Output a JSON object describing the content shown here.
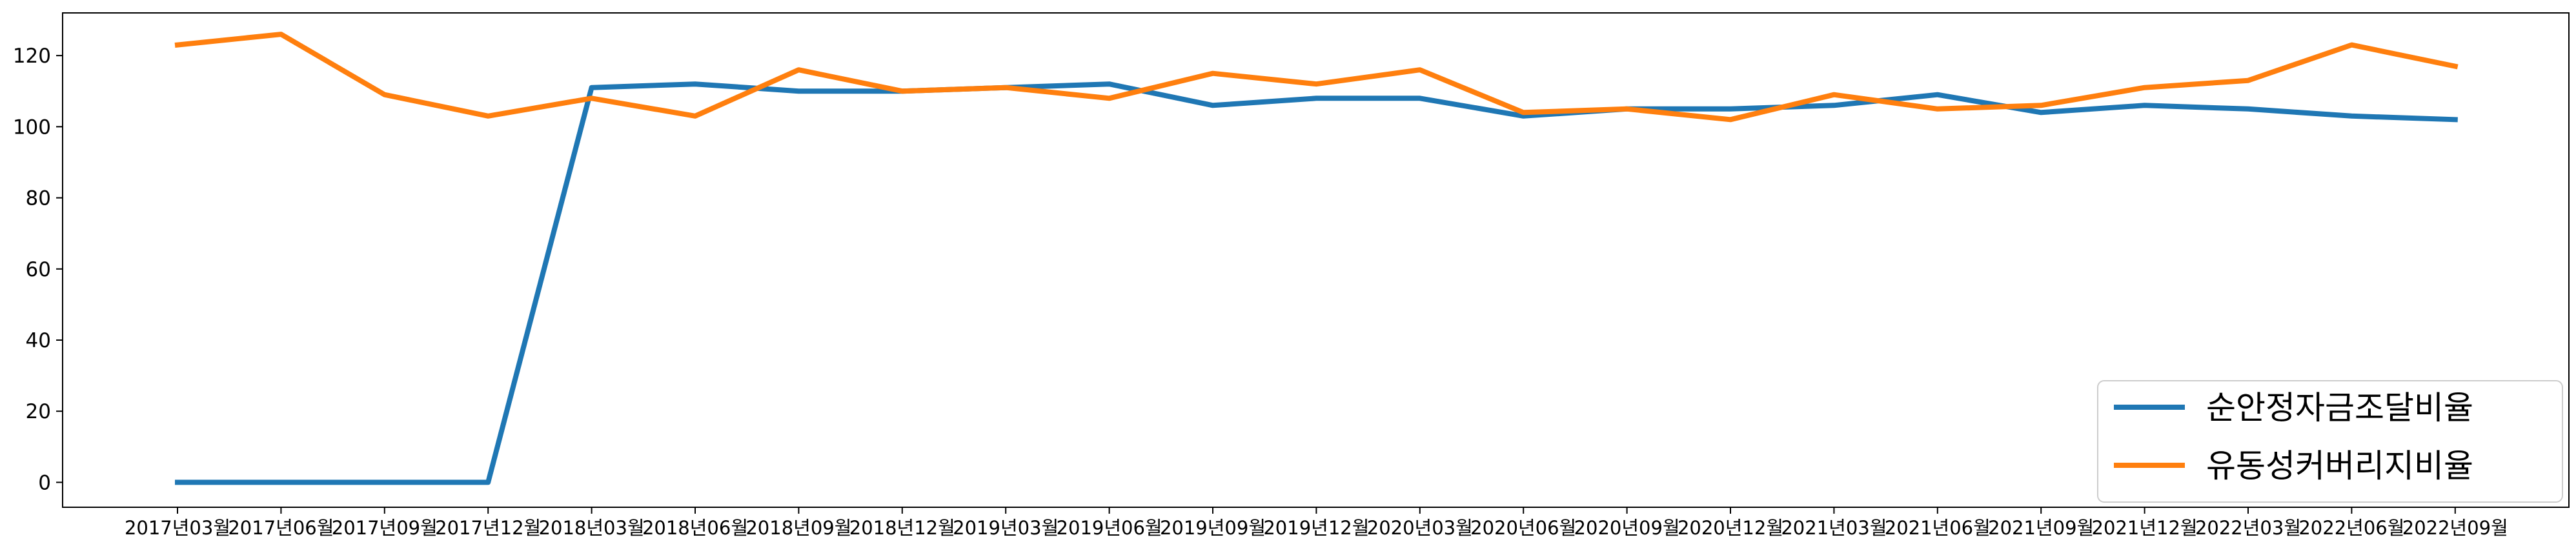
{
  "chart_data": {
    "type": "line",
    "title": "",
    "xlabel": "",
    "ylabel": "",
    "categories": [
      "2017년03월",
      "2017년06월",
      "2017년09월",
      "2017년12월",
      "2018년03월",
      "2018년06월",
      "2018년09월",
      "2018년12월",
      "2019년03월",
      "2019년06월",
      "2019년09월",
      "2019년12월",
      "2020년03월",
      "2020년06월",
      "2020년09월",
      "2020년12월",
      "2021년03월",
      "2021년06월",
      "2021년09월",
      "2021년12월",
      "2022년03월",
      "2022년06월",
      "2022년09월"
    ],
    "yticks": [
      "0",
      "20",
      "40",
      "60",
      "80",
      "100",
      "120"
    ],
    "ylim": [
      -7,
      132
    ],
    "grid": false,
    "legend_position": "bottom-right",
    "series": [
      {
        "name": "순안정자금조달비율",
        "color": "#1f77b4",
        "values": [
          0,
          0,
          0,
          0,
          111,
          112,
          110,
          110,
          111,
          112,
          106,
          108,
          108,
          103,
          105,
          105,
          106,
          109,
          104,
          106,
          105,
          103,
          102
        ]
      },
      {
        "name": "유동성커버리지비율",
        "color": "#ff7f0e",
        "values": [
          123,
          126,
          109,
          103,
          108,
          103,
          116,
          110,
          111,
          108,
          115,
          112,
          116,
          104,
          105,
          102,
          109,
          105,
          106,
          111,
          113,
          123,
          117
        ]
      }
    ]
  }
}
